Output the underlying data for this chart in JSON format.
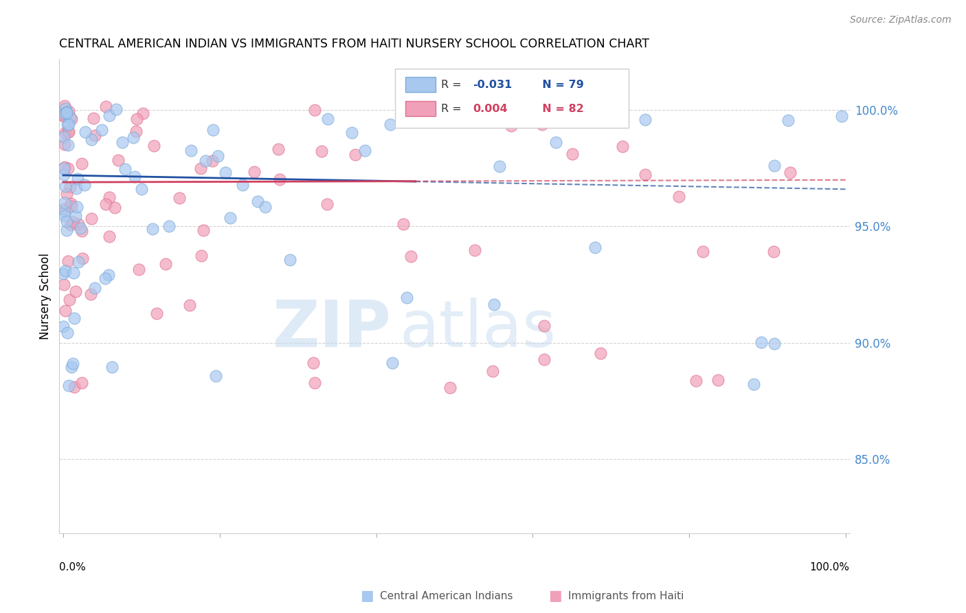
{
  "title": "CENTRAL AMERICAN INDIAN VS IMMIGRANTS FROM HAITI NURSERY SCHOOL CORRELATION CHART",
  "source": "Source: ZipAtlas.com",
  "ylabel": "Nursery School",
  "legend_blue_R": "-0.031",
  "legend_blue_N": "79",
  "legend_pink_R": "0.004",
  "legend_pink_N": "82",
  "ytick_labels": [
    "85.0%",
    "90.0%",
    "95.0%",
    "100.0%"
  ],
  "ytick_values": [
    0.85,
    0.9,
    0.95,
    1.0
  ],
  "xlim": [
    -0.005,
    1.005
  ],
  "ylim": [
    0.818,
    1.022
  ],
  "blue_color": "#A8C8F0",
  "pink_color": "#F0A0B8",
  "blue_edge_color": "#7BAAD8",
  "pink_edge_color": "#E07090",
  "trend_blue_color": "#2050A0",
  "trend_pink_color": "#D04060",
  "watermark_zip_color": "#C8DCF0",
  "watermark_atlas_color": "#C8DCF0",
  "background_color": "#ffffff",
  "grid_color": "#CCCCCC",
  "ytick_color": "#4488CC",
  "source_color": "#888888",
  "legend_text_color": "#333333",
  "legend_blue_text_color": "#2050A0",
  "legend_pink_text_color": "#D04060"
}
